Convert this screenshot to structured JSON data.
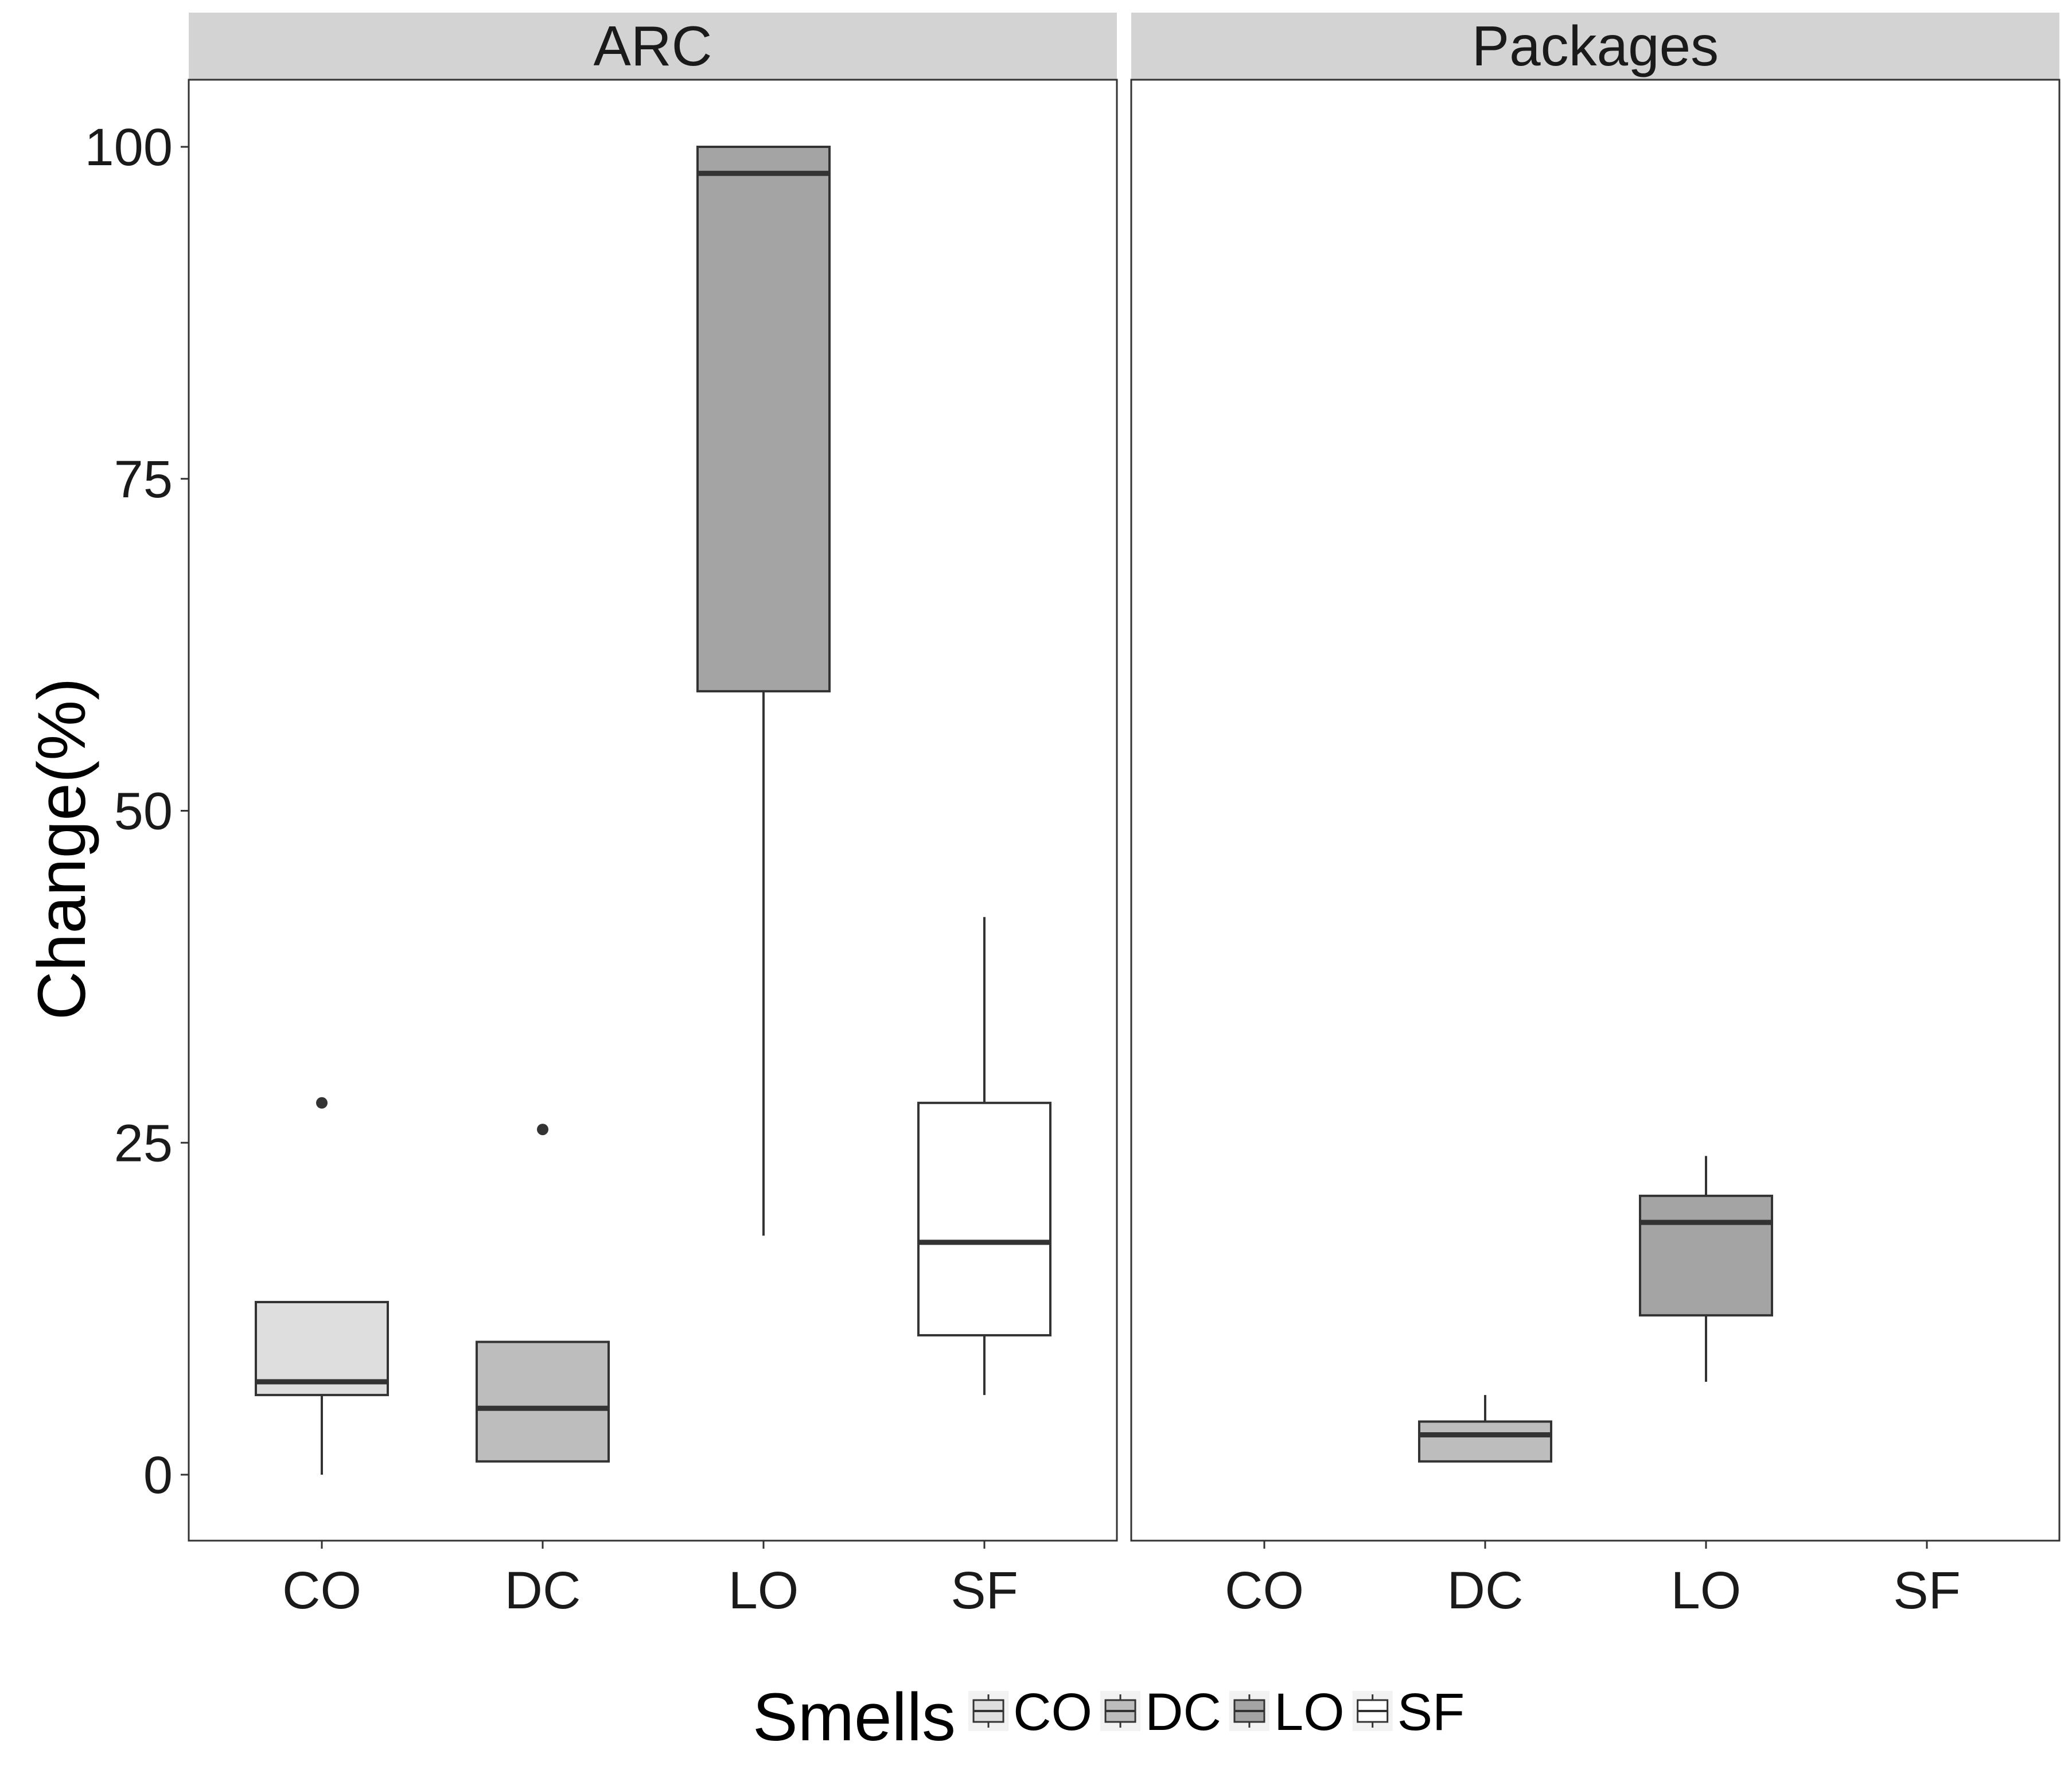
{
  "chart_data": {
    "type": "boxplot",
    "ylabel": "Change(%)",
    "ylim": [
      -5,
      105
    ],
    "yticks": [
      "0",
      "25",
      "50",
      "75",
      "100"
    ],
    "categories": [
      "CO",
      "DC",
      "LO",
      "SF"
    ],
    "grid": false,
    "legend": {
      "title": "Smells",
      "position": "bottom",
      "items": [
        {
          "label": "CO",
          "fill": "#dedede"
        },
        {
          "label": "DC",
          "fill": "#bdbdbd"
        },
        {
          "label": "LO",
          "fill": "#a4a4a4"
        },
        {
          "label": "SF",
          "fill": "#ffffff"
        }
      ]
    },
    "panels": [
      {
        "title": "ARC",
        "boxes": [
          {
            "category": "CO",
            "min": 0,
            "q1": 6,
            "median": 7,
            "q3": 13,
            "max": 13,
            "outliers": [
              28
            ]
          },
          {
            "category": "DC",
            "min": 1,
            "q1": 1,
            "median": 5,
            "q3": 10,
            "max": 10,
            "outliers": [
              26
            ]
          },
          {
            "category": "LO",
            "min": 18,
            "q1": 59,
            "median": 98,
            "q3": 100,
            "max": 100,
            "outliers": []
          },
          {
            "category": "SF",
            "min": 6,
            "q1": 10.5,
            "median": 17.5,
            "q3": 28,
            "max": 42,
            "outliers": []
          }
        ]
      },
      {
        "title": "Packages",
        "boxes": [
          {
            "category": "DC",
            "min": 1,
            "q1": 1,
            "median": 3,
            "q3": 4,
            "max": 6,
            "outliers": []
          },
          {
            "category": "LO",
            "min": 7,
            "q1": 12,
            "median": 19,
            "q3": 21,
            "max": 24,
            "outliers": []
          }
        ]
      }
    ]
  }
}
